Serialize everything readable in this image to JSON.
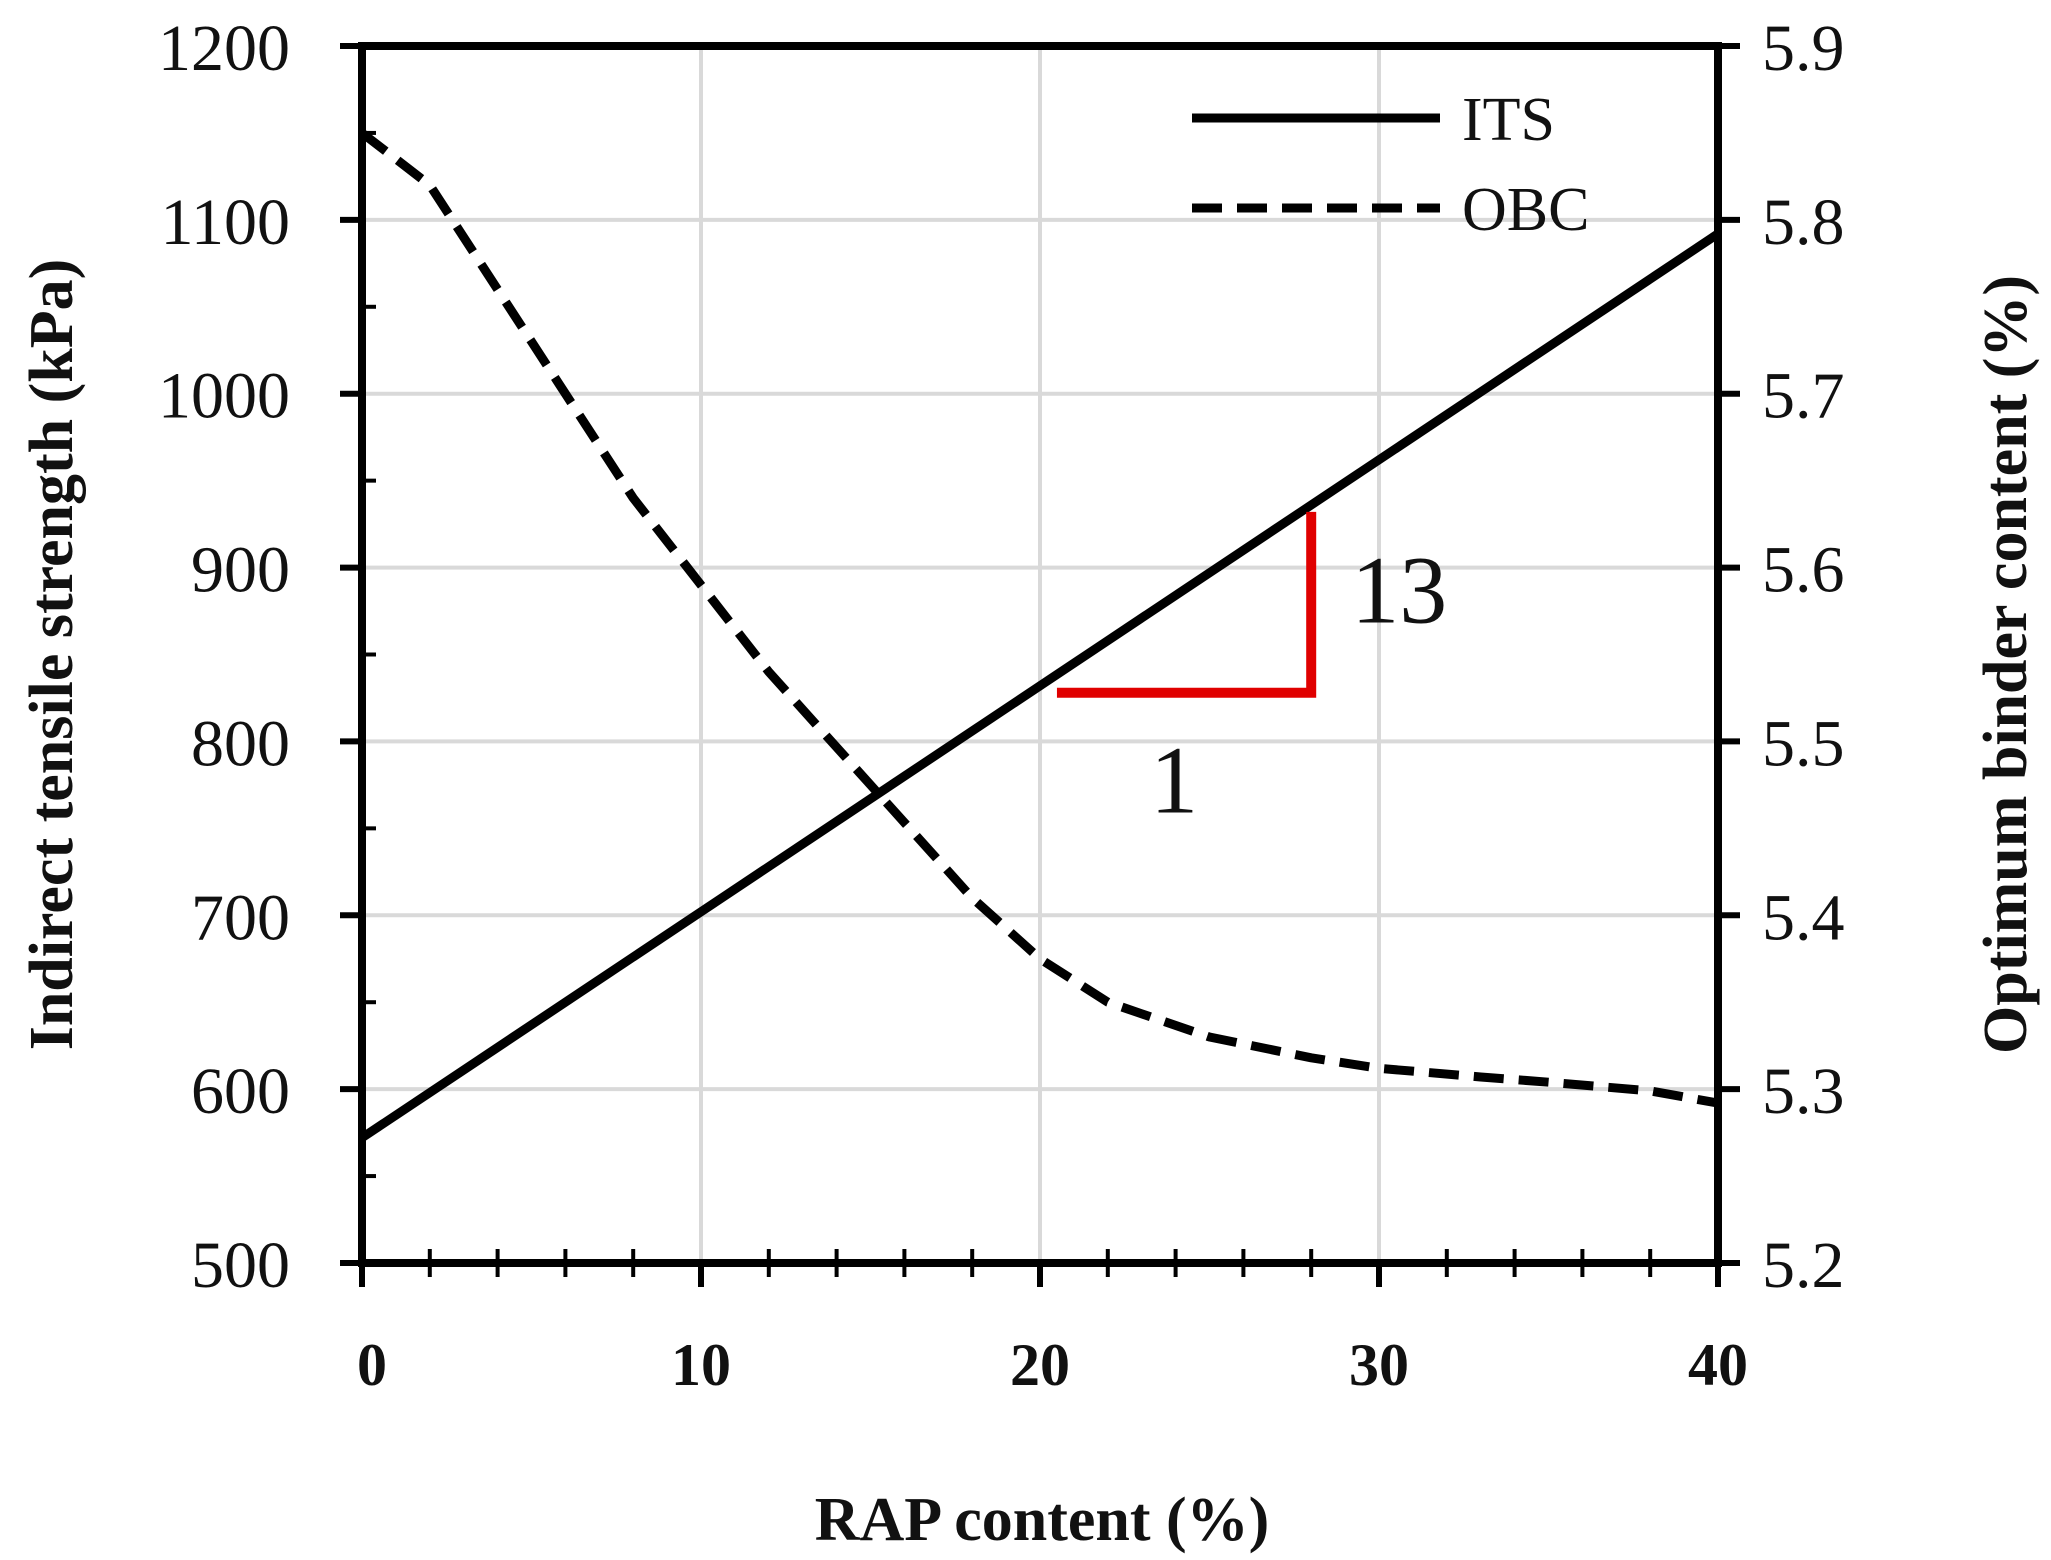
{
  "chart_data": {
    "type": "line",
    "xlabel": "RAP content (%)",
    "ylabel_left": "Indirect tensile strength (kPa)",
    "ylabel_right": "Optimum binder content (%)",
    "xlim": [
      0,
      40
    ],
    "ylim_left": [
      500,
      1200
    ],
    "ylim_right": [
      5.2,
      5.9
    ],
    "x_ticks": [
      "0",
      "10",
      "20",
      "30",
      "40"
    ],
    "y_ticks_left": [
      "500",
      "600",
      "700",
      "800",
      "900",
      "1000",
      "1100",
      "1200"
    ],
    "y_ticks_right": [
      "5.2",
      "5.3",
      "5.4",
      "5.5",
      "5.6",
      "5.7",
      "5.8",
      "5.9"
    ],
    "grid": true,
    "legend_position": "top-right",
    "series": [
      {
        "name": "ITS",
        "axis": "left",
        "style": "solid",
        "color": "#000000",
        "x": [
          0,
          40
        ],
        "y": [
          572,
          1092
        ]
      },
      {
        "name": "OBC",
        "axis": "right",
        "style": "dashed",
        "color": "#000000",
        "x": [
          0,
          2,
          5,
          8,
          10,
          12,
          15,
          18,
          20,
          22,
          25,
          28,
          30,
          33,
          35,
          38,
          40
        ],
        "y": [
          5.85,
          5.82,
          5.73,
          5.64,
          5.59,
          5.54,
          5.475,
          5.41,
          5.375,
          5.35,
          5.33,
          5.318,
          5.312,
          5.307,
          5.304,
          5.299,
          5.292
        ]
      }
    ],
    "annotations": [
      {
        "type": "slope-triangle",
        "color": "#e00000",
        "x_start": 20.5,
        "x_end": 28,
        "y_base": 828,
        "y_top": 932,
        "run_label": "1",
        "rise_label": "13"
      }
    ]
  }
}
